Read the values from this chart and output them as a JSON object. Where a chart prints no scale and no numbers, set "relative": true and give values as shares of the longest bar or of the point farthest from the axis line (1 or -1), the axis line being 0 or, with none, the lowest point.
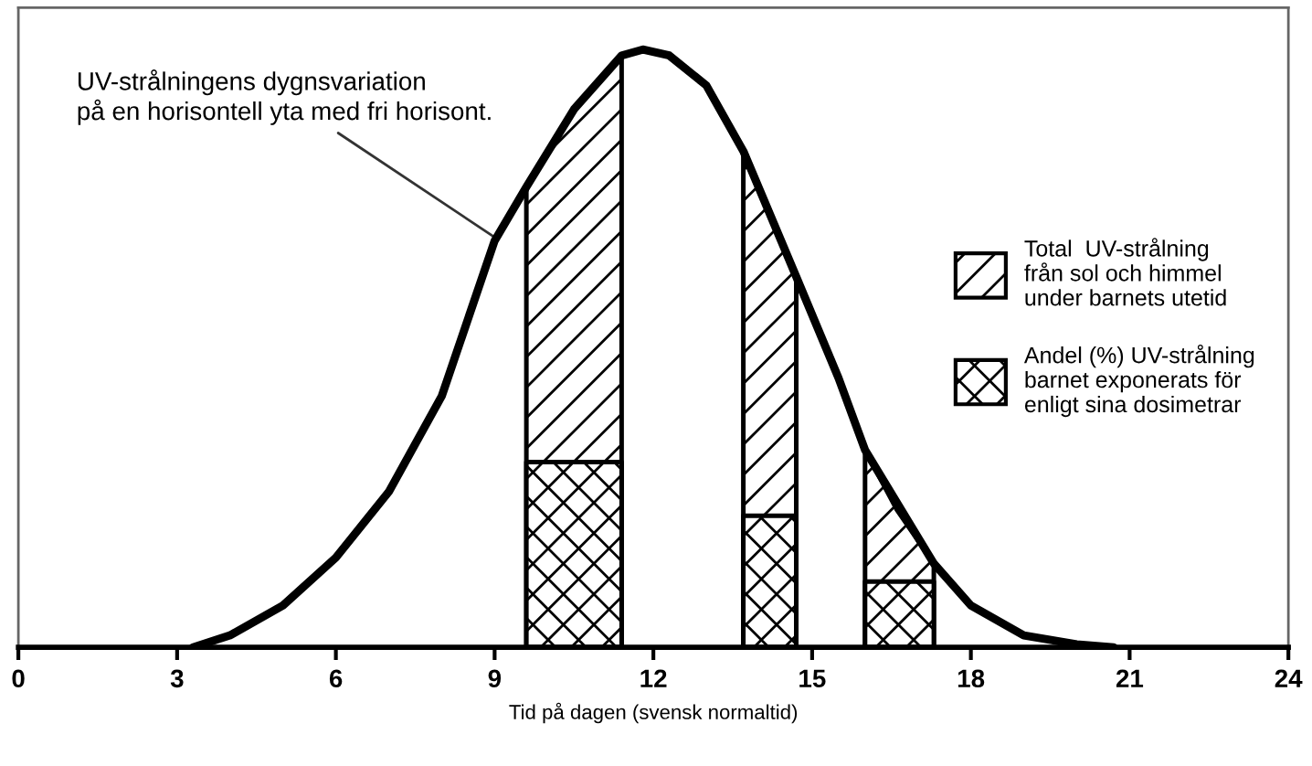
{
  "chart_data": {
    "type": "line",
    "relative": true,
    "xlabel": "Tid på dagen (svensk normaltid)",
    "xlim": [
      0,
      24
    ],
    "xticks": [
      0,
      3,
      6,
      9,
      12,
      15,
      18,
      21,
      24
    ],
    "grid": false,
    "legend": "right",
    "marker": "none",
    "line_style": "solid",
    "annotations": [
      {
        "text": "UV-strålningens dygnsvariation\npå en horisontell yta med fri horisont.",
        "x": 9.1,
        "y": 0.68
      }
    ],
    "series": [
      {
        "color": "#000000",
        "x": [
          3.3,
          4,
          5,
          6,
          7,
          8,
          9,
          9.6,
          10.5,
          11.4,
          11.8,
          12.3,
          13,
          13.7,
          14.7,
          15.5,
          16,
          17.3,
          18,
          19,
          20,
          20.7
        ],
        "values": [
          0,
          0.02,
          0.07,
          0.15,
          0.26,
          0.42,
          0.68,
          0.77,
          0.9,
          0.99,
          1,
          0.99,
          0.94,
          0.83,
          0.62,
          0.45,
          0.33,
          0.14,
          0.07,
          0.02,
          0.005,
          0
        ]
      },
      {
        "type": "area",
        "name": "Total  UV-strålning\nfrån sol och himmel\nunder barnets utetid",
        "color": "#000000",
        "x": [
          9.6,
          10.5,
          11.4,
          12.5,
          13.7,
          14.2,
          14.7,
          15.3,
          16,
          16.6,
          17.3
        ],
        "values": [
          0.77,
          0.9,
          0.99,
          null,
          0.83,
          0.73,
          0.62,
          null,
          0.33,
          0.23,
          0.14
        ]
      },
      {
        "type": "area",
        "name": "Andel (%) UV-strålning\nbarnet exponerats för\nenligt sina dosimetrar",
        "color": "#000000",
        "x": [
          9.6,
          11.4,
          12.5,
          13.7,
          14.7,
          15.3,
          16,
          17.3
        ],
        "values": [
          0.31,
          0.31,
          null,
          0.22,
          0.22,
          null,
          0.11,
          0.11
        ]
      }
    ]
  }
}
